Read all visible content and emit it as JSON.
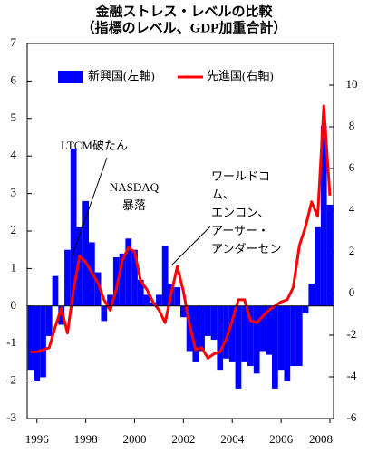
{
  "chart_data": {
    "type": "bar-line",
    "title": [
      "金融ストレス・レベルの比較",
      "（指標のレベル、GDP加重合計）"
    ],
    "x": [
      1995.75,
      1996,
      1996.25,
      1996.5,
      1996.75,
      1997,
      1997.25,
      1997.5,
      1997.75,
      1998,
      1998.25,
      1998.5,
      1998.75,
      1999,
      1999.25,
      1999.5,
      1999.75,
      2000,
      2000.25,
      2000.5,
      2000.75,
      2001,
      2001.25,
      2001.5,
      2001.75,
      2002,
      2002.25,
      2002.5,
      2002.75,
      2003,
      2003.25,
      2003.5,
      2003.75,
      2004,
      2004.25,
      2004.5,
      2004.75,
      2005,
      2005.25,
      2005.5,
      2005.75,
      2006,
      2006.25,
      2006.5,
      2006.75,
      2007,
      2007.25,
      2007.5,
      2007.75,
      2008
    ],
    "xlim": [
      1995.6,
      2008.15
    ],
    "xticks": [
      1996,
      1998,
      2000,
      2002,
      2004,
      2006,
      2008
    ],
    "ylim": [
      -3,
      7
    ],
    "yticks": [
      -3,
      -2,
      -1,
      0,
      1,
      2,
      3,
      4,
      5,
      6,
      7
    ],
    "y2lim": [
      -6,
      12
    ],
    "y2ticks": [
      -6,
      -4,
      -2,
      0,
      2,
      4,
      6,
      8,
      10
    ],
    "series": [
      {
        "name": "新興国(左軸)",
        "color": "#0000ff",
        "kind": "bar",
        "values": [
          -1.7,
          -2.0,
          -1.9,
          -0.8,
          0.8,
          -0.5,
          1.5,
          4.2,
          2.1,
          2.8,
          1.7,
          0.9,
          -0.4,
          0.3,
          1.3,
          1.4,
          1.8,
          1.5,
          0.7,
          0.3,
          0.1,
          0.3,
          1.6,
          0.6,
          0.5,
          -0.3,
          -1.2,
          -1.5,
          -1.2,
          -0.8,
          -0.9,
          -1.7,
          -1.4,
          -1.5,
          -2.2,
          -1.5,
          -1.6,
          -1.8,
          -1.2,
          -1.3,
          -2.2,
          -1.7,
          -2.0,
          -1.6,
          -1.6,
          -0.2,
          0.6,
          2.1,
          4.8,
          2.7
        ]
      },
      {
        "name": "先進国(右軸)",
        "color": "#ff0000",
        "kind": "line",
        "axis": "y2",
        "values": [
          -2.8,
          -2.8,
          -2.7,
          -2.6,
          -1.6,
          -0.7,
          -1.9,
          0.2,
          1.8,
          1.5,
          1.0,
          0.5,
          -0.3,
          -0.8,
          0.2,
          1.6,
          2.2,
          2.0,
          0.6,
          0.2,
          -0.4,
          -0.8,
          -1.4,
          0.0,
          1.3,
          0.1,
          -1.5,
          -2.7,
          -2.6,
          -3.1,
          -2.9,
          -2.8,
          -2.2,
          -1.3,
          -0.3,
          -0.3,
          -1.3,
          -1.4,
          -1.1,
          -0.8,
          -0.6,
          -0.4,
          -0.3,
          0.3,
          2.3,
          3.2,
          4.4,
          3.7,
          9.0,
          4.7
        ]
      }
    ],
    "annotations": [
      [
        "LTCM破たん"
      ],
      [
        "NASDAQ",
        "暴落"
      ],
      [
        "ワールドコ",
        "ム、",
        "エンロン、",
        "アーサー・",
        "アンダーセン"
      ]
    ]
  }
}
